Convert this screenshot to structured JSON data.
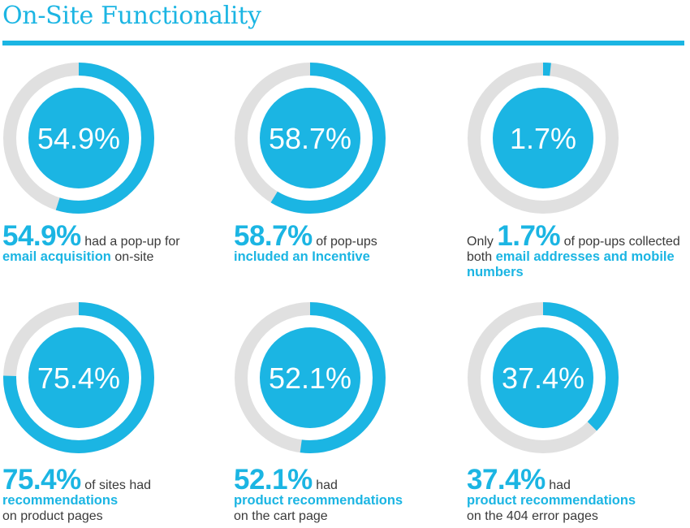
{
  "title": "On-Site Functionality",
  "colors": {
    "accent": "#1bb5e3",
    "track": "#e0e0e0",
    "text": "#3a3a3a"
  },
  "chart_data": [
    {
      "type": "pie",
      "value": 54.9,
      "label": "54.9%",
      "caption": {
        "pre": "",
        "big": "54.9%",
        "mid": " had a pop-up for ",
        "hl1": "email acquisition",
        "post": " on-site",
        "hl2": "",
        "tail": ""
      }
    },
    {
      "type": "pie",
      "value": 58.7,
      "label": "58.7%",
      "caption": {
        "pre": "",
        "big": "58.7%",
        "mid": " of pop-ups ",
        "hl1": "included an Incentive",
        "post": "",
        "hl2": "",
        "tail": ""
      }
    },
    {
      "type": "pie",
      "value": 1.7,
      "label": "1.7%",
      "caption": {
        "pre": "Only ",
        "big": "1.7%",
        "mid": " of pop-ups collected both ",
        "hl1": "email addresses and mobile numbers",
        "post": "",
        "hl2": "",
        "tail": ""
      }
    },
    {
      "type": "pie",
      "value": 75.4,
      "label": "75.4%",
      "caption": {
        "pre": "",
        "big": "75.4%",
        "mid": " of sites had ",
        "hl1": "recommendations",
        "post": " on product pages",
        "hl2": "",
        "tail": ""
      }
    },
    {
      "type": "pie",
      "value": 52.1,
      "label": "52.1%",
      "caption": {
        "pre": "",
        "big": "52.1%",
        "mid": " had ",
        "hl1": "product recommendations",
        "post": " on the cart page",
        "hl2": "",
        "tail": ""
      }
    },
    {
      "type": "pie",
      "value": 37.4,
      "label": "37.4%",
      "caption": {
        "pre": "",
        "big": "37.4%",
        "mid": " had ",
        "hl1": "product recommendations",
        "post": " on the 404 error pages",
        "hl2": "",
        "tail": ""
      }
    }
  ]
}
